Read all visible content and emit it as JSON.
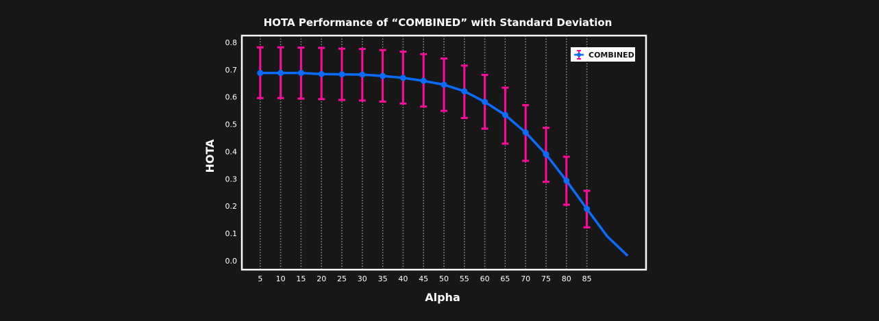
{
  "chart_data": {
    "type": "line",
    "title": "HOTA Performance of “COMBINED” with Standard Deviation",
    "xlabel": "Alpha",
    "ylabel": "HOTA",
    "xlim": [
      0.5,
      99.5
    ],
    "ylim": [
      -0.033,
      0.825
    ],
    "xticks": [
      5,
      10,
      15,
      20,
      25,
      30,
      35,
      40,
      45,
      50,
      55,
      60,
      65,
      70,
      75,
      80,
      85
    ],
    "yticks": [
      "0.0",
      "0.1",
      "0.2",
      "0.3",
      "0.4",
      "0.5",
      "0.6",
      "0.7",
      "0.8"
    ],
    "grid": "vertical dotted",
    "legend_position": "top-right",
    "colors": {
      "background": "#171717",
      "line": "#0a6cff",
      "error": "#ff0a9c",
      "frame": "#ffffff"
    },
    "series": [
      {
        "name": "COMBINED",
        "x": [
          5,
          10,
          15,
          20,
          25,
          30,
          35,
          40,
          45,
          50,
          55,
          60,
          65,
          70,
          75,
          80,
          85
        ],
        "y": [
          0.688,
          0.688,
          0.688,
          0.684,
          0.683,
          0.682,
          0.677,
          0.67,
          0.659,
          0.645,
          0.621,
          0.582,
          0.534,
          0.47,
          0.39,
          0.293,
          0.19
        ],
        "err_high": [
          0.782,
          0.782,
          0.781,
          0.78,
          0.777,
          0.776,
          0.772,
          0.766,
          0.757,
          0.741,
          0.715,
          0.681,
          0.634,
          0.57,
          0.487,
          0.381,
          0.256
        ],
        "err_low": [
          0.596,
          0.596,
          0.594,
          0.592,
          0.589,
          0.587,
          0.583,
          0.576,
          0.565,
          0.549,
          0.523,
          0.484,
          0.429,
          0.366,
          0.289,
          0.205,
          0.122
        ]
      }
    ],
    "line_extension": {
      "x": [
        85,
        90,
        95
      ],
      "y": [
        0.19,
        0.089,
        0.018
      ]
    }
  }
}
